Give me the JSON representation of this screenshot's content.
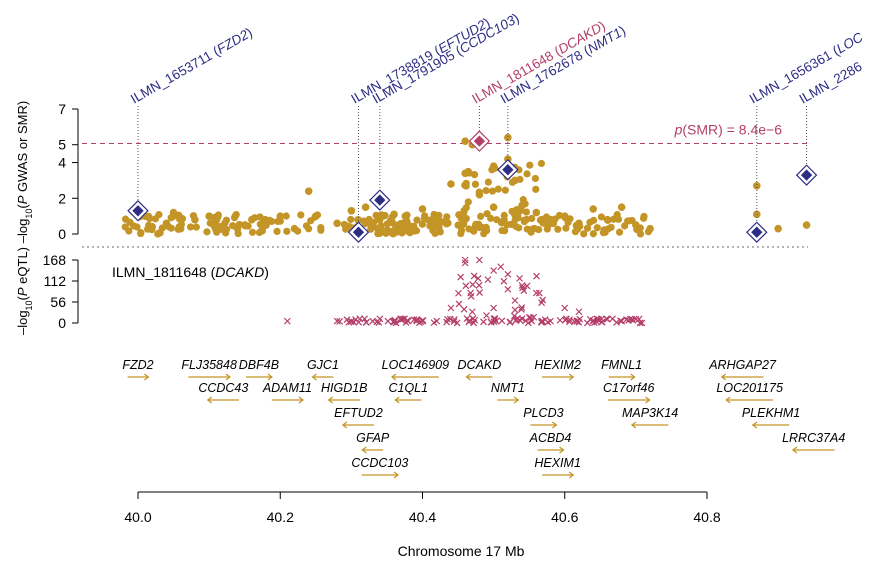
{
  "chart_data": [
    {
      "type": "scatter",
      "panel": "GWAS/SMR",
      "ylabel_prefix": "–log",
      "ylabel_sub": "10",
      "ylabel_paren": "(",
      "ylabel_p": "P",
      "ylabel_rest": " GWAS or SMR)",
      "ylim": [
        0,
        7
      ],
      "yticks": [
        "0",
        "2",
        "4",
        "5",
        "7"
      ],
      "ytick_values": [
        0,
        2,
        4,
        5,
        7
      ],
      "threshold": {
        "label_p": "p",
        "label_rest": "(SMR) = 8.4e−6",
        "value": 5.07
      },
      "gwas_color": "#c39426",
      "smr_color": "#2e2d84",
      "gwas_points_x": [
        40.0,
        40.01,
        40.02,
        40.04,
        40.05,
        40.06,
        40.08,
        40.1,
        40.12,
        40.14,
        40.16,
        40.18,
        40.2,
        40.22,
        40.24,
        40.25,
        40.28,
        40.3,
        40.32,
        40.34,
        40.36,
        40.38,
        40.4,
        40.42,
        40.44,
        40.46,
        40.46,
        40.47,
        40.48,
        40.5,
        40.5,
        40.52,
        40.52,
        40.53,
        40.54,
        40.56,
        40.58,
        40.6,
        40.62,
        40.64,
        40.66,
        40.68,
        40.7,
        40.72,
        40.87,
        40.87,
        40.9,
        40.94
      ],
      "gwas_points_y": [
        1.3,
        1.0,
        0.4,
        0.6,
        1.2,
        0.3,
        0.8,
        1.0,
        0.4,
        0.3,
        0.8,
        0.5,
        1.0,
        0.3,
        2.4,
        1.0,
        0.6,
        1.3,
        1.5,
        0.8,
        1.1,
        0.5,
        1.4,
        0.5,
        2.8,
        5.2,
        3.4,
        5.0,
        2.2,
        1.5,
        3.8,
        5.4,
        4.2,
        3.0,
        1.6,
        1.2,
        0.8,
        1.0,
        0.6,
        1.4,
        0.8,
        1.5,
        0.5,
        0.3,
        2.7,
        1.1,
        0.3,
        0.5
      ],
      "smr_probes": [
        {
          "label": "ILMN_1653711 (",
          "gene": "FZD2",
          "close": ")",
          "x": 40.0,
          "y": 1.3,
          "highlight": false
        },
        {
          "label": "ILMN_1738819 (",
          "gene": "EFTUD2",
          "close": ")",
          "x": 40.31,
          "y": 0.1,
          "highlight": false
        },
        {
          "label": "ILMN_1791905 (",
          "gene": "CCDC103",
          "close": ")",
          "x": 40.34,
          "y": 1.9,
          "highlight": false
        },
        {
          "label": "ILMN_1811648 (",
          "gene": "DCAKD",
          "close": ")",
          "x": 40.48,
          "y": 5.2,
          "highlight": true
        },
        {
          "label": "ILMN_1762678 (",
          "gene": "NMT1",
          "close": ")",
          "x": 40.52,
          "y": 3.6,
          "highlight": false
        },
        {
          "label": "ILMN_1656361 (",
          "gene": "LOC",
          "close": "",
          "x": 40.87,
          "y": 0.1,
          "highlight": false
        },
        {
          "label": "ILMN_2286",
          "gene": "",
          "close": "",
          "x": 40.94,
          "y": 3.3,
          "highlight": false
        }
      ],
      "highlight_color": "#b43e6a"
    },
    {
      "type": "scatter",
      "panel": "eQTL",
      "ylabel_prefix": "–log",
      "ylabel_sub": "10",
      "ylabel_paren": "(",
      "ylabel_p": "P",
      "ylabel_rest": " eQTL)",
      "ylim": [
        0,
        168
      ],
      "yticks": [
        "0",
        "56",
        "112",
        "168"
      ],
      "ytick_values": [
        0,
        56,
        112,
        168
      ],
      "probe_label": "ILMN_1811648 (",
      "probe_gene": "DCAKD",
      "probe_close": ")",
      "marker_color": "#b43e6a",
      "eqtl_points_x": [
        40.21,
        40.28,
        40.3,
        40.36,
        40.38,
        40.4,
        40.42,
        40.44,
        40.46,
        40.46,
        40.47,
        40.48,
        40.49,
        40.5,
        40.5,
        40.51,
        40.52,
        40.52,
        40.53,
        40.54,
        40.55,
        40.56,
        40.58,
        40.6,
        40.62,
        40.64,
        40.66,
        40.68,
        40.7
      ],
      "eqtl_points_y": [
        5,
        5,
        5,
        5,
        5,
        5,
        5,
        40,
        168,
        160,
        30,
        168,
        20,
        40,
        140,
        150,
        130,
        90,
        60,
        100,
        15,
        80,
        5,
        40,
        30,
        5,
        10,
        5,
        10
      ]
    },
    {
      "type": "gene_track",
      "gene_color": "#c39426",
      "genes": [
        {
          "name": "FZD2",
          "x": 40.0,
          "row": 0,
          "dir": "right"
        },
        {
          "name": "FLJ35848",
          "x": 40.1,
          "row": 0,
          "dir": "right"
        },
        {
          "name": "DBF4B",
          "x": 40.17,
          "row": 0,
          "dir": "right"
        },
        {
          "name": "GJC1",
          "x": 40.26,
          "row": 0,
          "dir": "left"
        },
        {
          "name": "LOC146909",
          "x": 40.39,
          "row": 0,
          "dir": "left"
        },
        {
          "name": "DCAKD",
          "x": 40.48,
          "row": 0,
          "dir": "left"
        },
        {
          "name": "HEXIM2",
          "x": 40.59,
          "row": 0,
          "dir": "right"
        },
        {
          "name": "FMNL1",
          "x": 40.68,
          "row": 0,
          "dir": "right"
        },
        {
          "name": "ARHGAP27",
          "x": 40.85,
          "row": 0,
          "dir": "left"
        },
        {
          "name": "CCDC43",
          "x": 40.12,
          "row": 1,
          "dir": "left"
        },
        {
          "name": "ADAM11",
          "x": 40.21,
          "row": 1,
          "dir": "right"
        },
        {
          "name": "HIGD1B",
          "x": 40.29,
          "row": 1,
          "dir": "left"
        },
        {
          "name": "C1QL1",
          "x": 40.38,
          "row": 1,
          "dir": "left"
        },
        {
          "name": "NMT1",
          "x": 40.52,
          "row": 1,
          "dir": "right"
        },
        {
          "name": "C17orf46",
          "x": 40.69,
          "row": 1,
          "dir": "right"
        },
        {
          "name": "LOC201175",
          "x": 40.86,
          "row": 1,
          "dir": "left"
        },
        {
          "name": "EFTUD2",
          "x": 40.31,
          "row": 2,
          "dir": "left"
        },
        {
          "name": "PLCD3",
          "x": 40.57,
          "row": 2,
          "dir": "right"
        },
        {
          "name": "MAP3K14",
          "x": 40.72,
          "row": 2,
          "dir": "left"
        },
        {
          "name": "PLEKHM1",
          "x": 40.89,
          "row": 2,
          "dir": "left"
        },
        {
          "name": "GFAP",
          "x": 40.33,
          "row": 3,
          "dir": "left"
        },
        {
          "name": "ACBD4",
          "x": 40.58,
          "row": 3,
          "dir": "right"
        },
        {
          "name": "LRRC37A4",
          "x": 40.95,
          "row": 3,
          "dir": "left"
        },
        {
          "name": "CCDC103",
          "x": 40.34,
          "row": 4,
          "dir": "right"
        },
        {
          "name": "HEXIM1",
          "x": 40.59,
          "row": 4,
          "dir": "right"
        }
      ]
    },
    {
      "type": "axis",
      "xlabel": "Chromosome 17 Mb",
      "xlim": [
        40.0,
        40.8
      ],
      "xticks": [
        "40.0",
        "40.2",
        "40.4",
        "40.6",
        "40.8"
      ],
      "xtick_values": [
        40.0,
        40.2,
        40.4,
        40.6,
        40.8
      ]
    }
  ]
}
